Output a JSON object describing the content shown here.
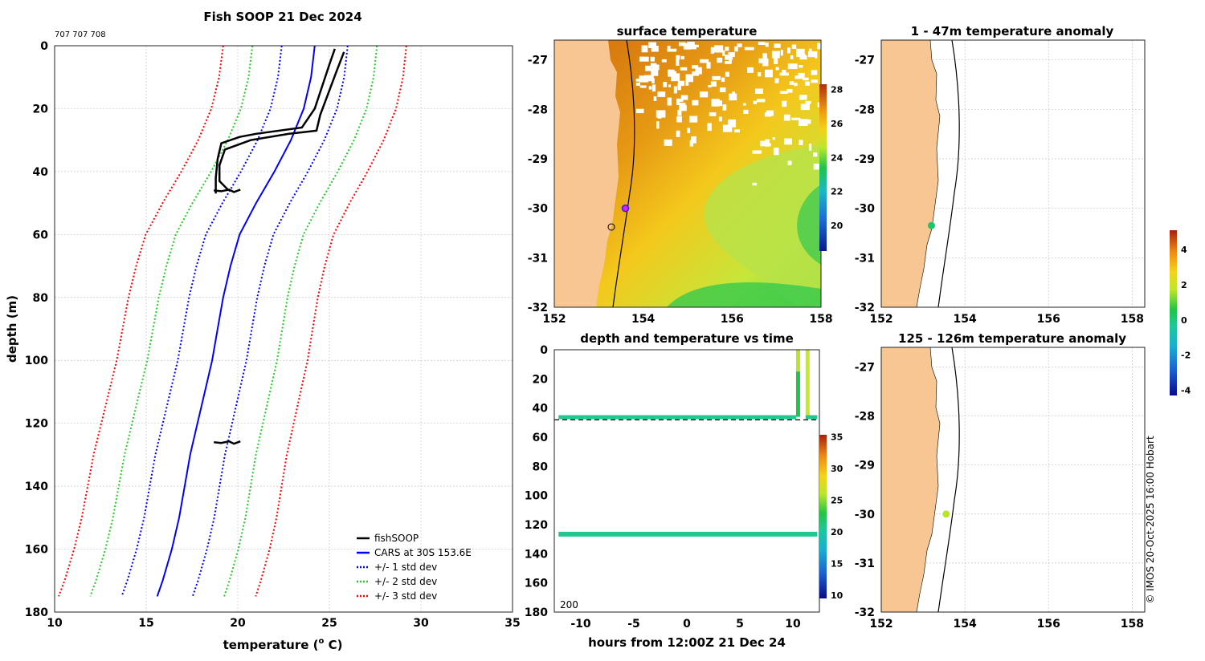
{
  "chart_data": [
    {
      "type": "line",
      "title": "Fish SOOP 21 Dec 2024",
      "subtitle": "707 707 708",
      "xlabel_main": "temperature (",
      "xlabel_sup": "o",
      "xlabel_unit": " C)",
      "ylabel": "depth (m)",
      "xlim": [
        10,
        35
      ],
      "ylim": [
        0,
        180
      ],
      "xticks": [
        10,
        15,
        20,
        25,
        30,
        35
      ],
      "yticks": [
        0,
        20,
        40,
        60,
        80,
        100,
        120,
        140,
        160,
        180
      ],
      "cars_profile": {
        "depth": [
          0,
          10,
          20,
          30,
          40,
          50,
          60,
          70,
          80,
          90,
          100,
          110,
          120,
          130,
          140,
          150,
          160,
          170,
          175
        ],
        "temp": [
          24.2,
          24.0,
          23.6,
          22.9,
          22.0,
          21.0,
          20.1,
          19.6,
          19.2,
          18.9,
          18.6,
          18.2,
          17.8,
          17.4,
          17.1,
          16.8,
          16.4,
          15.9,
          15.6
        ]
      },
      "std_dev": [
        1.8,
        3.4,
        5.0
      ],
      "series": [
        {
          "name": "fishSOOP",
          "color": "#000000",
          "style": "solid"
        },
        {
          "name": "CARS at 30S 153.6E",
          "color": "#0000ff",
          "style": "solid"
        },
        {
          "name": "+/- 1 std dev",
          "color": "#0000ff",
          "style": "dotted"
        },
        {
          "name": "+/- 2 std dev",
          "color": "#22cc22",
          "style": "dotted"
        },
        {
          "name": "+/- 3 std dev",
          "color": "#ff0000",
          "style": "dotted"
        }
      ],
      "fish_profiles": [
        {
          "depth": [
            1,
            6,
            20,
            26,
            28,
            29,
            31,
            36,
            42,
            44,
            46,
            47
          ],
          "temp": [
            25.3,
            25.0,
            24.2,
            23.5,
            21.0,
            20.1,
            19.1,
            18.9,
            18.8,
            18.8,
            18.8,
            18.8
          ]
        },
        {
          "depth": [
            2,
            8,
            22,
            27,
            28,
            30,
            33,
            38,
            43,
            46
          ],
          "temp": [
            25.8,
            25.4,
            24.5,
            24.3,
            22.8,
            20.7,
            19.3,
            19.0,
            19.0,
            19.5
          ]
        }
      ],
      "fish_blobs": [
        {
          "depth": 46,
          "temp": 19.0
        },
        {
          "depth": 126,
          "temp": 19.0
        }
      ]
    },
    {
      "type": "heatmap",
      "title": "surface temperature",
      "xlim": [
        152,
        158
      ],
      "ylim": [
        -32,
        -26.6
      ],
      "xticks": [
        152,
        154,
        156,
        158
      ],
      "yticks": [
        -27,
        -28,
        -29,
        -30,
        -31,
        -32
      ],
      "colorbar_ticks": [
        20,
        22,
        24,
        26,
        28
      ],
      "colorbar_range": [
        18.5,
        28.3
      ],
      "marker": {
        "lon": 153.6,
        "lat": -30.0
      }
    },
    {
      "type": "scatter",
      "title": "depth and temperature vs time",
      "xlabel": "hours from 12:00Z 21 Dec 24",
      "xlim": [
        -12.5,
        12.5
      ],
      "ylim": [
        0,
        180
      ],
      "xticks": [
        -10,
        -5,
        0,
        5,
        10
      ],
      "yticks": [
        0,
        20,
        40,
        60,
        80,
        100,
        120,
        140,
        160,
        180
      ],
      "colorbar_ticks": [
        10,
        15,
        20,
        25,
        30,
        35
      ],
      "colorbar_range": [
        9.5,
        35.3
      ],
      "corner_text": "200",
      "shallow_depth": 46,
      "deep_depth": 126,
      "reference_depth": 47
    },
    {
      "type": "scatter",
      "title": "1 - 47m temperature anomaly",
      "xlim": [
        152,
        158.3
      ],
      "ylim": [
        -32,
        -26.6
      ],
      "xticks": [
        152,
        154,
        156,
        158
      ],
      "yticks": [
        -27,
        -28,
        -29,
        -30,
        -31,
        -32
      ],
      "points": [
        {
          "lon": 153.2,
          "lat": -30.35,
          "color": "#1cc46a"
        }
      ]
    },
    {
      "type": "scatter",
      "title": "125 - 126m temperature anomaly",
      "xlim": [
        152,
        158.3
      ],
      "ylim": [
        -32,
        -26.6
      ],
      "xticks": [
        152,
        154,
        156,
        158
      ],
      "yticks": [
        -27,
        -28,
        -29,
        -30,
        -31,
        -32
      ],
      "points": [
        {
          "lon": 153.55,
          "lat": -30.0,
          "color": "#b8e62a"
        }
      ]
    }
  ],
  "anomaly_colorbar": {
    "ticks": [
      4,
      2,
      0,
      -2,
      -4
    ],
    "range": [
      -4.3,
      5.1
    ]
  },
  "credit": "© IMOS 20-Oct-2025 16:00 Hobart"
}
